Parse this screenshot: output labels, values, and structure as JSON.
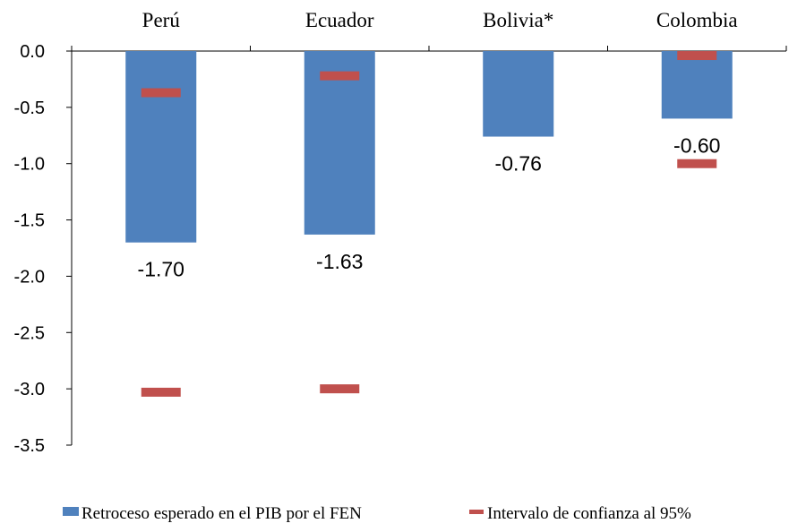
{
  "chart_data": {
    "type": "bar",
    "categories": [
      "Perú",
      "Ecuador",
      "Bolivia*",
      "Colombia"
    ],
    "series": [
      {
        "name": "Retroceso esperado en el PIB por el FEN",
        "type": "bar",
        "values": [
          -1.7,
          -1.63,
          -0.76,
          -0.6
        ],
        "labels": [
          "-1.70",
          "-1.63",
          "-0.76",
          "-0.60"
        ],
        "color": "#4f81bd"
      },
      {
        "name": "Intervalo de confianza al 95%",
        "type": "interval",
        "lower": [
          -3.03,
          -3.0,
          null,
          -1.0
        ],
        "upper": [
          -0.37,
          -0.22,
          null,
          -0.04
        ],
        "color": "#c0504d"
      }
    ],
    "yticks": [
      "0.0",
      "-0.5",
      "-1.0",
      "-1.5",
      "-2.0",
      "-2.5",
      "-3.0",
      "-3.5"
    ],
    "ylim": [
      -3.5,
      0
    ],
    "xaxis_position": "top",
    "legend_position": "bottom",
    "grid": false
  }
}
